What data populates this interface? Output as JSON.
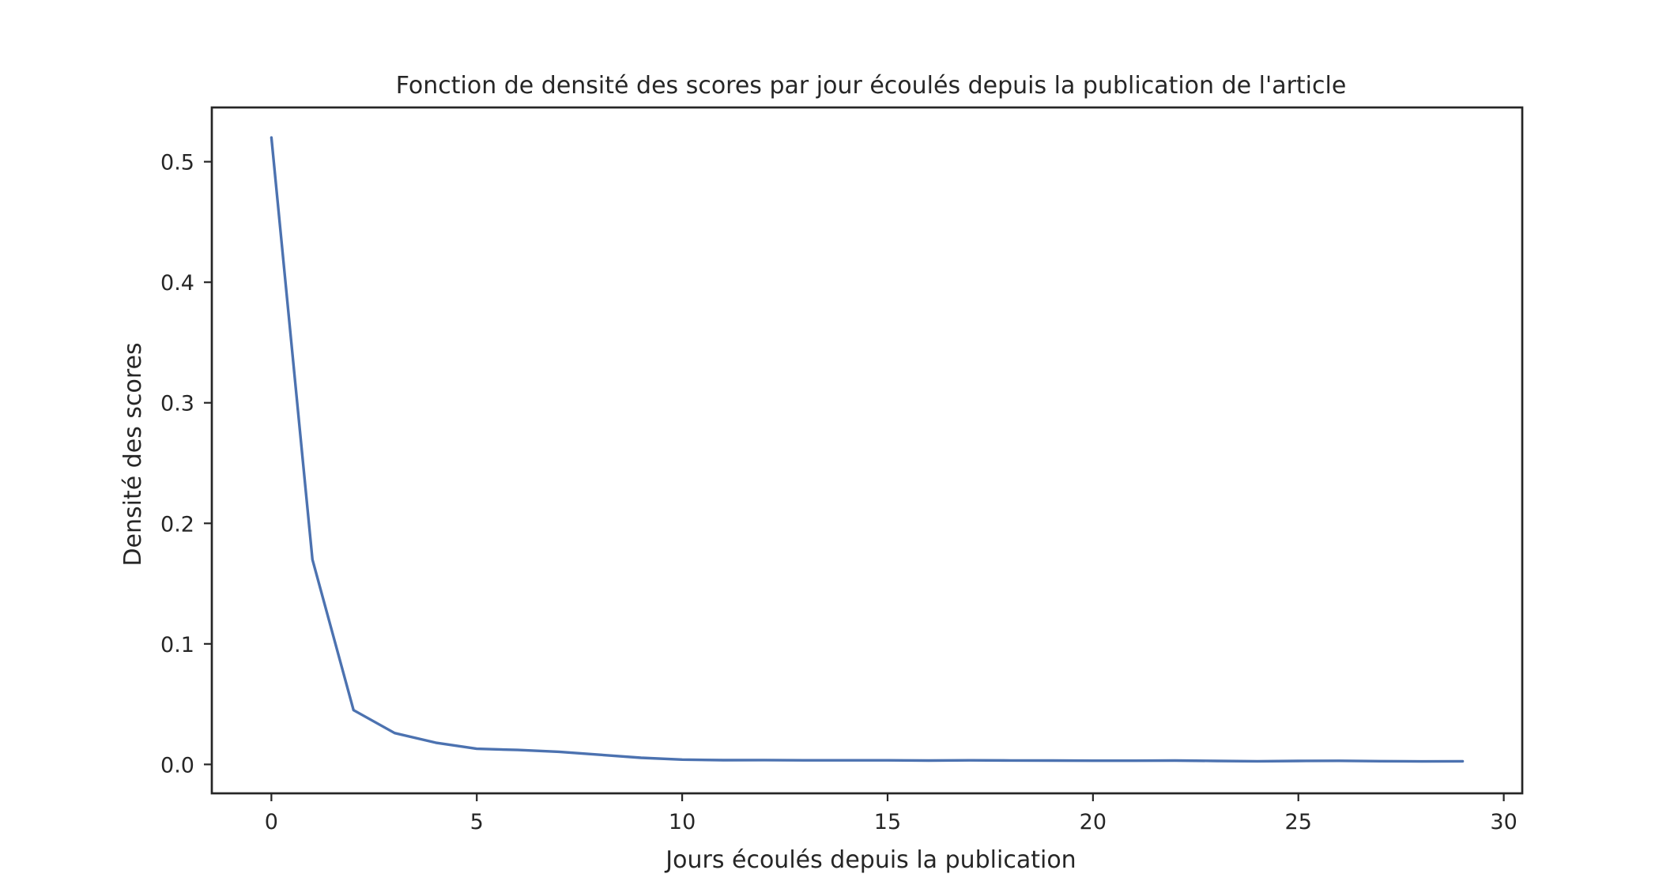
{
  "chart_data": {
    "type": "line",
    "title": "Fonction de densité des scores par jour écoulés depuis la publication de l'article",
    "xlabel": "Jours écoulés depuis la publication",
    "ylabel": "Densité des scores",
    "xlim": [
      -1.45,
      30.45
    ],
    "ylim": [
      -0.024,
      0.545
    ],
    "xticks": [
      0,
      5,
      10,
      15,
      20,
      25,
      30
    ],
    "xtick_labels": [
      "0",
      "5",
      "10",
      "15",
      "20",
      "25",
      "30"
    ],
    "yticks": [
      0.0,
      0.1,
      0.2,
      0.3,
      0.4,
      0.5
    ],
    "ytick_labels": [
      "0.0",
      "0.1",
      "0.2",
      "0.3",
      "0.4",
      "0.5"
    ],
    "grid": false,
    "legend": "none",
    "series": [
      {
        "color": "#4c72b0",
        "x": [
          0,
          1,
          2,
          3,
          4,
          5,
          6,
          7,
          8,
          9,
          10,
          11,
          12,
          13,
          14,
          15,
          16,
          17,
          18,
          19,
          20,
          21,
          22,
          23,
          24,
          25,
          26,
          27,
          28,
          29
        ],
        "y": [
          0.52,
          0.17,
          0.045,
          0.026,
          0.018,
          0.013,
          0.012,
          0.0105,
          0.008,
          0.0055,
          0.004,
          0.0035,
          0.0036,
          0.0034,
          0.0034,
          0.0034,
          0.0032,
          0.0034,
          0.0033,
          0.0032,
          0.0031,
          0.0031,
          0.0032,
          0.0029,
          0.0026,
          0.0029,
          0.003,
          0.0027,
          0.0025,
          0.0026
        ]
      }
    ]
  }
}
